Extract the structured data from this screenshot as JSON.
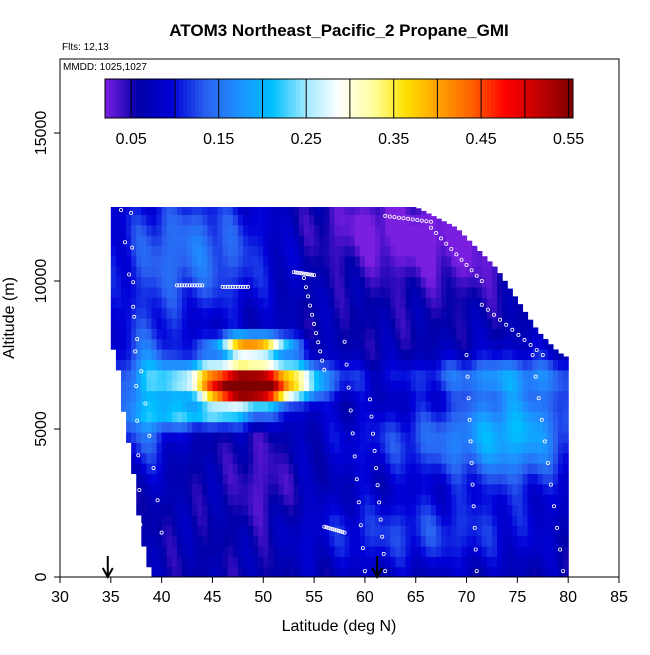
{
  "chart_data": {
    "type": "heatmap",
    "title": "ATOM3 Northeast_Pacific_2 Propane_GMI",
    "notes": [
      "Flts: 12,13",
      "MMDD: 1025,1027"
    ],
    "xlabel": "Latitude (deg N)",
    "ylabel": "Altitude (m)",
    "xlim": [
      30,
      85
    ],
    "ylim": [
      0,
      17500
    ],
    "x_ticks": [
      30,
      35,
      40,
      45,
      50,
      55,
      60,
      65,
      70,
      75,
      80,
      85
    ],
    "y_ticks": [
      0,
      5000,
      10000,
      15000
    ],
    "grid": false,
    "colorbar": {
      "placement": "top-inside",
      "range": [
        0.02,
        0.555
      ],
      "ticks": [
        0.05,
        0.15,
        0.25,
        0.35,
        0.45,
        0.55
      ],
      "colors": [
        "#7a1ee0",
        "#0000a8",
        "#0000d8",
        "#2a60f0",
        "#1e90ff",
        "#00c0ff",
        "#a0e8ff",
        "#ffffff",
        "#ffffa0",
        "#ffe000",
        "#ffa000",
        "#ff6000",
        "#ff0000",
        "#c00000",
        "#800000"
      ]
    },
    "markers": [
      {
        "type": "arrow",
        "x": 34.7
      },
      {
        "type": "arrow",
        "x": 61.2
      }
    ],
    "grid_spec": {
      "lat_start": 35,
      "lat_end": 80,
      "lat_step": 0.5,
      "alt_step": 350,
      "outline_top_alt": [
        {
          "lat": 35,
          "alt": 12500
        },
        {
          "lat": 55,
          "alt": 12500
        },
        {
          "lat": 60,
          "alt": 12500
        },
        {
          "lat": 65,
          "alt": 12500
        },
        {
          "lat": 67,
          "alt": 12150
        },
        {
          "lat": 69,
          "alt": 11800
        },
        {
          "lat": 71,
          "alt": 11100
        },
        {
          "lat": 73,
          "alt": 10400
        },
        {
          "lat": 75,
          "alt": 9350
        },
        {
          "lat": 77,
          "alt": 8300
        },
        {
          "lat": 79,
          "alt": 7600
        },
        {
          "lat": 80,
          "alt": 7400
        }
      ],
      "outline_left_lat": [
        {
          "alt": 0,
          "lat": 39.5
        },
        {
          "alt": 700,
          "lat": 38.5
        },
        {
          "alt": 1400,
          "lat": 38.0
        },
        {
          "alt": 2100,
          "lat": 37.8
        },
        {
          "alt": 2800,
          "lat": 37.5
        },
        {
          "alt": 3500,
          "lat": 37.3
        },
        {
          "alt": 4200,
          "lat": 37.0
        },
        {
          "alt": 4900,
          "lat": 36.5
        },
        {
          "alt": 5600,
          "lat": 36.2
        },
        {
          "alt": 6300,
          "lat": 36.0
        },
        {
          "alt": 7000,
          "lat": 35.8
        },
        {
          "alt": 8000,
          "lat": 35.0
        },
        {
          "alt": 12500,
          "lat": 35.0
        }
      ],
      "base_value": 0.06,
      "features": [
        {
          "lat": 48.5,
          "alt": 6700,
          "sx": 4.5,
          "sy": 420,
          "v": 0.48
        },
        {
          "lat": 49.0,
          "alt": 7850,
          "sx": 2.5,
          "sy": 250,
          "v": 0.34
        },
        {
          "lat": 48.5,
          "alt": 6200,
          "sx": 3.0,
          "sy": 260,
          "v": 0.3
        },
        {
          "lat": 45.0,
          "alt": 5500,
          "sx": 4.0,
          "sy": 300,
          "v": 0.17
        },
        {
          "lat": 38.5,
          "alt": 6200,
          "sx": 2.0,
          "sy": 1600,
          "v": 0.12
        },
        {
          "lat": 43.0,
          "alt": 11000,
          "sx": 6.0,
          "sy": 1600,
          "v": 0.09
        },
        {
          "lat": 62.0,
          "alt": 11800,
          "sx": 6.0,
          "sy": 900,
          "v": -0.04
        },
        {
          "lat": 70.0,
          "alt": 11000,
          "sx": 6.0,
          "sy": 1000,
          "v": -0.03
        },
        {
          "lat": 75.0,
          "alt": 5200,
          "sx": 4.0,
          "sy": 1500,
          "v": 0.1
        },
        {
          "lat": 68.0,
          "alt": 4600,
          "sx": 8.0,
          "sy": 900,
          "v": 0.07
        },
        {
          "lat": 65.0,
          "alt": 1500,
          "sx": 9.0,
          "sy": 900,
          "v": 0.06
        },
        {
          "lat": 50.0,
          "alt": 3000,
          "sx": 2.0,
          "sy": 1500,
          "v": -0.03
        },
        {
          "lat": 72.0,
          "alt": 6800,
          "sx": 7.0,
          "sy": 400,
          "v": 0.07
        }
      ]
    },
    "sample_tracks": [
      {
        "lat": [
          36,
          40
        ],
        "alt": [
          12400,
          1500
        ]
      },
      {
        "lat": [
          37,
          38
        ],
        "alt": [
          12300,
          600
        ]
      },
      {
        "lat": [
          41.5,
          44
        ],
        "alt": [
          9850,
          9850
        ]
      },
      {
        "lat": [
          46,
          48.5
        ],
        "alt": [
          9800,
          9800
        ]
      },
      {
        "lat": [
          53,
          55
        ],
        "alt": [
          10300,
          10200
        ]
      },
      {
        "lat": [
          54,
          56
        ],
        "alt": [
          10100,
          7000
        ]
      },
      {
        "lat": [
          58,
          60
        ],
        "alt": [
          7950,
          200
        ]
      },
      {
        "lat": [
          60.5,
          62
        ],
        "alt": [
          6000,
          200
        ]
      },
      {
        "lat": [
          62,
          66.5
        ],
        "alt": [
          12200,
          12000
        ]
      },
      {
        "lat": [
          66.5,
          71.5
        ],
        "alt": [
          11800,
          10000
        ]
      },
      {
        "lat": [
          71.5,
          77.5
        ],
        "alt": [
          9200,
          7500
        ]
      },
      {
        "lat": [
          76.5,
          79.5
        ],
        "alt": [
          7500,
          200
        ]
      },
      {
        "lat": [
          70,
          71
        ],
        "alt": [
          7500,
          200
        ]
      },
      {
        "lat": [
          56,
          58
        ],
        "alt": [
          1700,
          1500
        ]
      }
    ]
  }
}
